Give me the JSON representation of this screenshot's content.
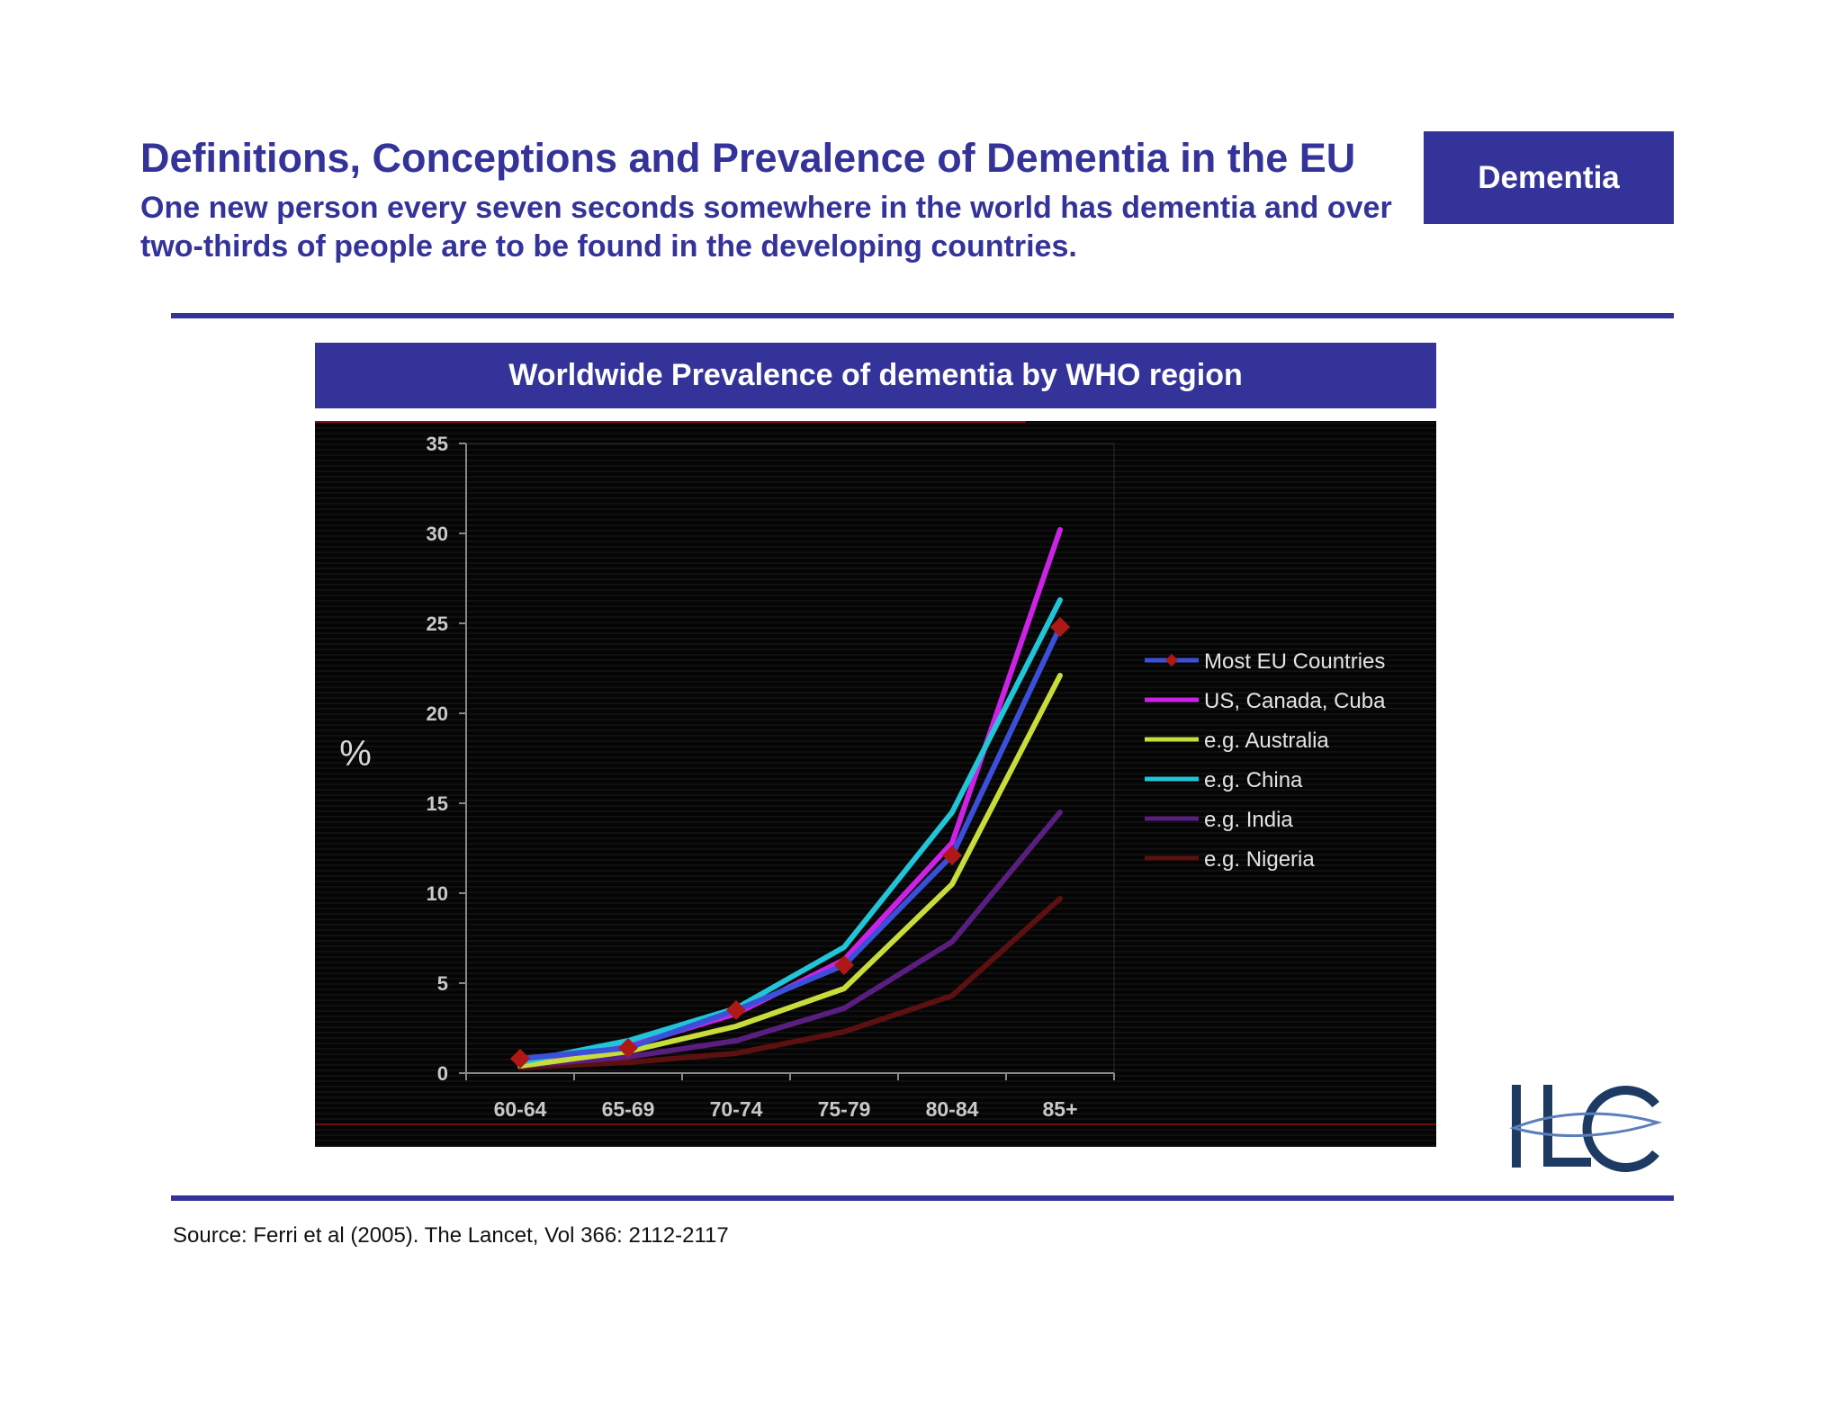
{
  "header": {
    "title": "Definitions, Conceptions and Prevalence of Dementia in the EU",
    "subtitle": "One new person every seven seconds somewhere in the world has dementia and over two-thirds of people are to be found in the developing countries.",
    "tag": "Dementia"
  },
  "chart_banner": "Worldwide Prevalence of dementia by WHO region",
  "colors": {
    "brand": "#343399",
    "chart_background": "#050505",
    "logo_navy": "#1d3a63",
    "logo_blue": "#5b7fb8"
  },
  "chart_data": {
    "type": "line",
    "ylabel": "%",
    "ylim": [
      0,
      35
    ],
    "yticks": [
      0,
      5,
      10,
      15,
      20,
      25,
      30,
      35
    ],
    "categories": [
      "60-64",
      "65-69",
      "70-74",
      "75-79",
      "80-84",
      "85+"
    ],
    "grid": false,
    "legend_position": "right",
    "series": [
      {
        "name": "Most EU Countries",
        "color": "#3b4fd8",
        "marker": "diamond",
        "marker_color": "#b01818",
        "values": [
          0.8,
          1.4,
          3.5,
          6.0,
          12.1,
          24.8
        ]
      },
      {
        "name": "US, Canada, Cuba",
        "color": "#cc22e6",
        "values": [
          0.7,
          1.5,
          3.3,
          6.3,
          12.8,
          30.2
        ]
      },
      {
        "name": "e.g. Australia",
        "color": "#c8dc3c",
        "values": [
          0.4,
          1.2,
          2.6,
          4.7,
          10.5,
          22.1
        ]
      },
      {
        "name": "e.g. China",
        "color": "#22c4d8",
        "values": [
          0.6,
          1.8,
          3.6,
          7.0,
          14.5,
          26.3
        ]
      },
      {
        "name": "e.g. India",
        "color": "#5a1e80",
        "values": [
          0.4,
          0.9,
          1.8,
          3.6,
          7.3,
          14.5
        ]
      },
      {
        "name": "e.g. Nigeria",
        "color": "#5c1010",
        "values": [
          0.3,
          0.6,
          1.1,
          2.3,
          4.3,
          9.7
        ]
      }
    ]
  },
  "source": "Source:  Ferri et al (2005). The Lancet, Vol 366: 2112-2117",
  "logo": {
    "alt": "ILC"
  }
}
